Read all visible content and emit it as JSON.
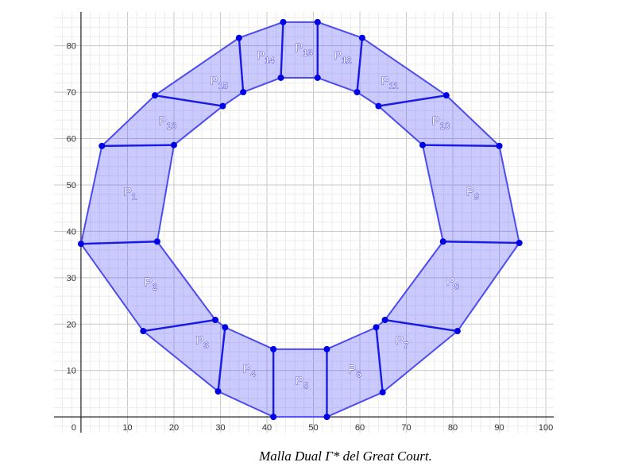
{
  "caption": "Malla Dual Γ* del Great Court.",
  "chart_data": {
    "type": "polygon-mesh",
    "xlim": [
      -5.8,
      101.7
    ],
    "ylim": [
      -3.4,
      87.3
    ],
    "grid": true,
    "x_ticks": [
      0,
      10,
      20,
      30,
      40,
      50,
      60,
      70,
      80,
      90,
      100
    ],
    "y_ticks": [
      10,
      20,
      30,
      40,
      50,
      60,
      70,
      80
    ],
    "colors": {
      "fill": "#5050ff",
      "edge": "#1a1ae6",
      "boundary": "#4b4bf0",
      "point": "#0000e6"
    },
    "outer_vertices": [
      [
        0,
        37.3
      ],
      [
        4.5,
        58.4
      ],
      [
        15.9,
        69.3
      ],
      [
        34,
        81.7
      ],
      [
        43.5,
        85.1
      ],
      [
        50.9,
        85.1
      ],
      [
        60.5,
        81.7
      ],
      [
        78.6,
        69.3
      ],
      [
        90,
        58.4
      ],
      [
        94.3,
        37.5
      ],
      [
        81,
        18.5
      ],
      [
        64.9,
        5.3
      ],
      [
        52.9,
        0
      ],
      [
        41.4,
        0
      ],
      [
        29.5,
        5.5
      ],
      [
        13.4,
        18.5
      ]
    ],
    "inner_vertices": [
      [
        16.4,
        37.8
      ],
      [
        20,
        58.6
      ],
      [
        30.5,
        67
      ],
      [
        34.9,
        70
      ],
      [
        43,
        73.1
      ],
      [
        50.9,
        73.1
      ],
      [
        59.4,
        70
      ],
      [
        64,
        67
      ],
      [
        73.5,
        58.6
      ],
      [
        77.9,
        37.8
      ],
      [
        65.4,
        20.9
      ],
      [
        63.5,
        19.3
      ],
      [
        52.9,
        14.6
      ],
      [
        41.4,
        14.6
      ],
      [
        31,
        19.3
      ],
      [
        28.9,
        20.9
      ]
    ],
    "polygons": [
      {
        "base": "P",
        "sub": "1",
        "segment": 0
      },
      {
        "base": "P",
        "sub": "16",
        "segment": 1
      },
      {
        "base": "P",
        "sub": "15",
        "segment": 2
      },
      {
        "base": "P",
        "sub": "14",
        "segment": 3
      },
      {
        "base": "P",
        "sub": "13",
        "segment": 4
      },
      {
        "base": "P",
        "sub": "12",
        "segment": 5
      },
      {
        "base": "P",
        "sub": "11",
        "segment": 6
      },
      {
        "base": "P",
        "sub": "10",
        "segment": 7
      },
      {
        "base": "P",
        "sub": "9",
        "segment": 8
      },
      {
        "base": "P",
        "sub": "8",
        "segment": 9
      },
      {
        "base": "P",
        "sub": "7",
        "segment": 10
      },
      {
        "base": "P",
        "sub": "6",
        "segment": 11
      },
      {
        "base": "P",
        "sub": "5",
        "segment": 12
      },
      {
        "base": "P",
        "sub": "4",
        "segment": 13
      },
      {
        "base": "P",
        "sub": "3",
        "segment": 14
      },
      {
        "base": "P",
        "sub": "2",
        "segment": 15
      }
    ]
  }
}
